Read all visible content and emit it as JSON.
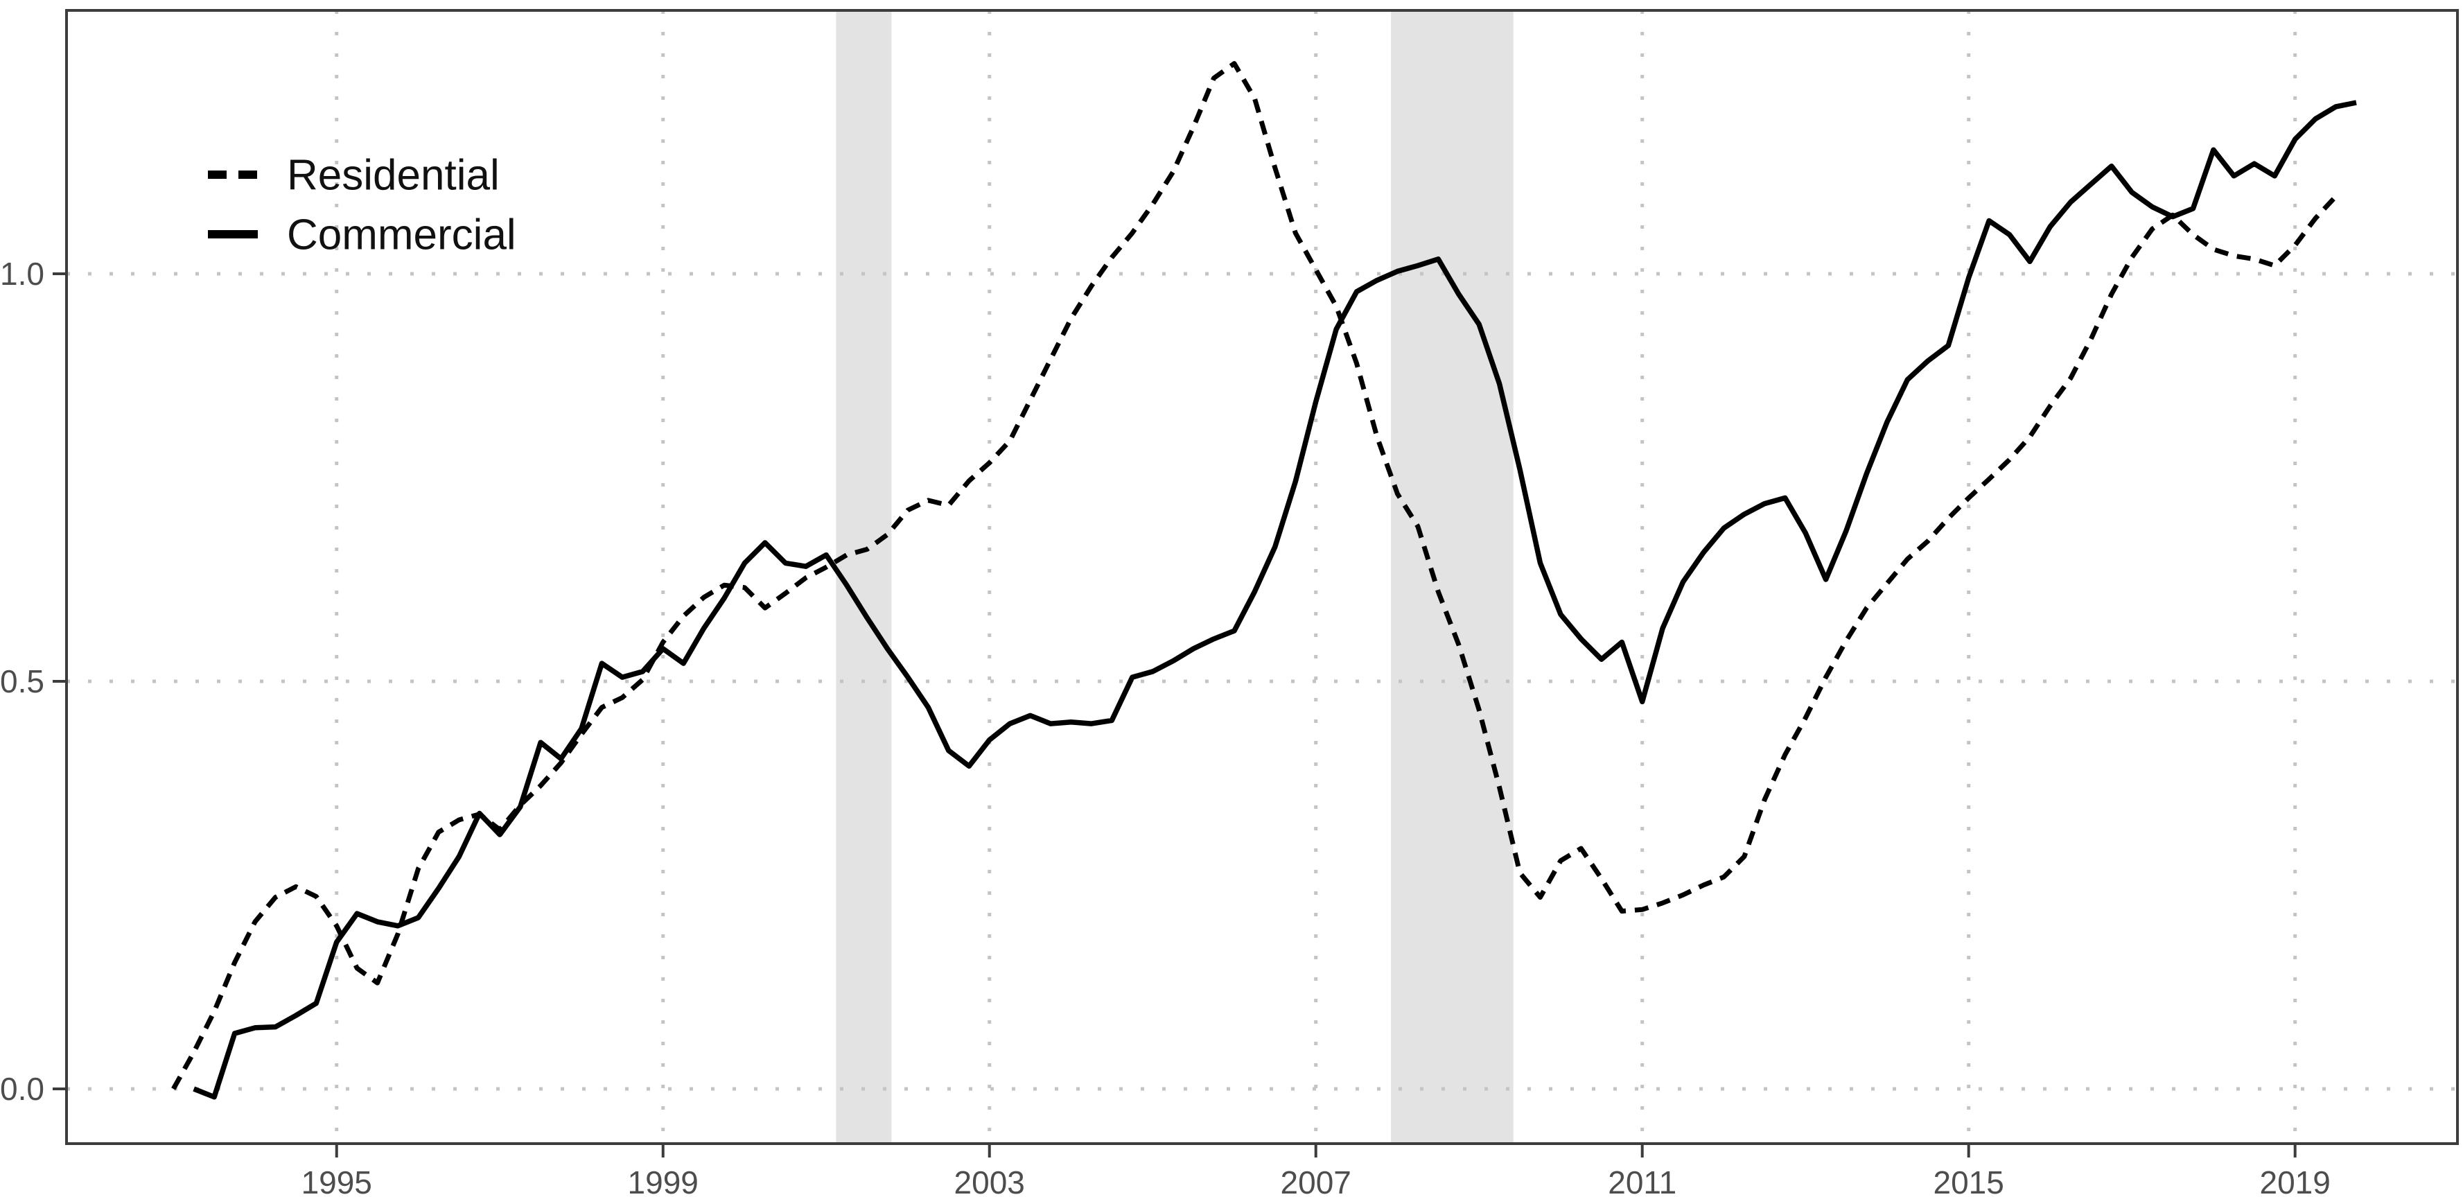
{
  "chart_data": {
    "type": "line",
    "title": "",
    "xlabel": "",
    "ylabel": "",
    "xlim": [
      1991.69,
      2020.99
    ],
    "ylim": [
      -0.0672,
      1.3231
    ],
    "x_ticks": [
      1995,
      1999,
      2003,
      2007,
      2011,
      2015,
      2019
    ],
    "x_tick_labels": [
      "1995",
      "1999",
      "2003",
      "2007",
      "2011",
      "2015",
      "2019"
    ],
    "y_ticks": [
      0.0,
      0.5,
      1.0
    ],
    "y_tick_labels": [
      "0.0",
      "0.5",
      "1.0"
    ],
    "grid": "dotted",
    "legend_position": "inside-top-left",
    "recession_bands": [
      {
        "start": 2001.12,
        "end": 2001.8
      },
      {
        "start": 2007.92,
        "end": 2009.42
      }
    ],
    "series": [
      {
        "name": "Residential",
        "style": "dashed",
        "points": [
          [
            1993.0,
            0.0
          ],
          [
            1993.25,
            0.045
          ],
          [
            1993.5,
            0.095
          ],
          [
            1993.75,
            0.155
          ],
          [
            1994.0,
            0.205
          ],
          [
            1994.25,
            0.235
          ],
          [
            1994.5,
            0.248
          ],
          [
            1994.75,
            0.236
          ],
          [
            1995.0,
            0.2
          ],
          [
            1995.25,
            0.148
          ],
          [
            1995.5,
            0.13
          ],
          [
            1995.75,
            0.19
          ],
          [
            1996.0,
            0.27
          ],
          [
            1996.25,
            0.315
          ],
          [
            1996.5,
            0.33
          ],
          [
            1996.75,
            0.337
          ],
          [
            1997.0,
            0.318
          ],
          [
            1997.25,
            0.348
          ],
          [
            1997.5,
            0.372
          ],
          [
            1997.75,
            0.4
          ],
          [
            1998.0,
            0.435
          ],
          [
            1998.25,
            0.468
          ],
          [
            1998.5,
            0.48
          ],
          [
            1998.75,
            0.502
          ],
          [
            1999.0,
            0.548
          ],
          [
            1999.25,
            0.58
          ],
          [
            1999.5,
            0.603
          ],
          [
            1999.75,
            0.618
          ],
          [
            2000.0,
            0.615
          ],
          [
            2000.25,
            0.59
          ],
          [
            2000.5,
            0.608
          ],
          [
            2000.75,
            0.627
          ],
          [
            2001.0,
            0.64
          ],
          [
            2001.25,
            0.655
          ],
          [
            2001.5,
            0.662
          ],
          [
            2001.75,
            0.68
          ],
          [
            2002.0,
            0.71
          ],
          [
            2002.25,
            0.722
          ],
          [
            2002.5,
            0.716
          ],
          [
            2002.75,
            0.746
          ],
          [
            2003.0,
            0.768
          ],
          [
            2003.25,
            0.795
          ],
          [
            2003.5,
            0.845
          ],
          [
            2003.75,
            0.895
          ],
          [
            2004.0,
            0.945
          ],
          [
            2004.25,
            0.985
          ],
          [
            2004.5,
            1.02
          ],
          [
            2004.75,
            1.05
          ],
          [
            2005.0,
            1.085
          ],
          [
            2005.25,
            1.125
          ],
          [
            2005.5,
            1.18
          ],
          [
            2005.75,
            1.24
          ],
          [
            2006.0,
            1.258
          ],
          [
            2006.25,
            1.215
          ],
          [
            2006.5,
            1.13
          ],
          [
            2006.75,
            1.05
          ],
          [
            2007.0,
            1.005
          ],
          [
            2007.25,
            0.96
          ],
          [
            2007.5,
            0.89
          ],
          [
            2007.75,
            0.8
          ],
          [
            2008.0,
            0.73
          ],
          [
            2008.25,
            0.69
          ],
          [
            2008.5,
            0.61
          ],
          [
            2008.75,
            0.545
          ],
          [
            2009.0,
            0.465
          ],
          [
            2009.25,
            0.37
          ],
          [
            2009.5,
            0.265
          ],
          [
            2009.75,
            0.235
          ],
          [
            2010.0,
            0.28
          ],
          [
            2010.25,
            0.295
          ],
          [
            2010.5,
            0.258
          ],
          [
            2010.75,
            0.218
          ],
          [
            2011.0,
            0.22
          ],
          [
            2011.25,
            0.228
          ],
          [
            2011.5,
            0.238
          ],
          [
            2011.75,
            0.25
          ],
          [
            2012.0,
            0.26
          ],
          [
            2012.25,
            0.285
          ],
          [
            2012.5,
            0.355
          ],
          [
            2012.75,
            0.41
          ],
          [
            2013.0,
            0.455
          ],
          [
            2013.25,
            0.505
          ],
          [
            2013.5,
            0.55
          ],
          [
            2013.75,
            0.59
          ],
          [
            2014.0,
            0.62
          ],
          [
            2014.25,
            0.65
          ],
          [
            2014.5,
            0.672
          ],
          [
            2014.75,
            0.7
          ],
          [
            2015.0,
            0.725
          ],
          [
            2015.25,
            0.748
          ],
          [
            2015.5,
            0.772
          ],
          [
            2015.75,
            0.8
          ],
          [
            2016.0,
            0.838
          ],
          [
            2016.25,
            0.872
          ],
          [
            2016.5,
            0.92
          ],
          [
            2016.75,
            0.975
          ],
          [
            2017.0,
            1.02
          ],
          [
            2017.25,
            1.055
          ],
          [
            2017.5,
            1.072
          ],
          [
            2017.75,
            1.048
          ],
          [
            2018.0,
            1.03
          ],
          [
            2018.25,
            1.022
          ],
          [
            2018.5,
            1.018
          ],
          [
            2018.75,
            1.01
          ],
          [
            2019.0,
            1.035
          ],
          [
            2019.25,
            1.068
          ],
          [
            2019.5,
            1.095
          ]
        ]
      },
      {
        "name": "Commercial",
        "style": "solid",
        "points": [
          [
            1993.25,
            0.0
          ],
          [
            1993.5,
            -0.01
          ],
          [
            1993.75,
            0.068
          ],
          [
            1994.0,
            0.075
          ],
          [
            1994.25,
            0.076
          ],
          [
            1994.5,
            0.09
          ],
          [
            1994.75,
            0.105
          ],
          [
            1995.0,
            0.18
          ],
          [
            1995.25,
            0.215
          ],
          [
            1995.5,
            0.205
          ],
          [
            1995.75,
            0.2
          ],
          [
            1996.0,
            0.21
          ],
          [
            1996.25,
            0.246
          ],
          [
            1996.5,
            0.285
          ],
          [
            1996.75,
            0.338
          ],
          [
            1997.0,
            0.312
          ],
          [
            1997.25,
            0.346
          ],
          [
            1997.5,
            0.425
          ],
          [
            1997.75,
            0.405
          ],
          [
            1998.0,
            0.442
          ],
          [
            1998.25,
            0.522
          ],
          [
            1998.5,
            0.505
          ],
          [
            1998.75,
            0.512
          ],
          [
            1999.0,
            0.54
          ],
          [
            1999.25,
            0.522
          ],
          [
            1999.5,
            0.565
          ],
          [
            1999.75,
            0.602
          ],
          [
            2000.0,
            0.645
          ],
          [
            2000.25,
            0.67
          ],
          [
            2000.5,
            0.645
          ],
          [
            2000.75,
            0.641
          ],
          [
            2001.0,
            0.655
          ],
          [
            2001.25,
            0.618
          ],
          [
            2001.5,
            0.578
          ],
          [
            2001.75,
            0.54
          ],
          [
            2002.0,
            0.505
          ],
          [
            2002.25,
            0.468
          ],
          [
            2002.5,
            0.415
          ],
          [
            2002.75,
            0.396
          ],
          [
            2003.0,
            0.428
          ],
          [
            2003.25,
            0.448
          ],
          [
            2003.5,
            0.458
          ],
          [
            2003.75,
            0.448
          ],
          [
            2004.0,
            0.45
          ],
          [
            2004.25,
            0.448
          ],
          [
            2004.5,
            0.452
          ],
          [
            2004.75,
            0.505
          ],
          [
            2005.0,
            0.512
          ],
          [
            2005.25,
            0.525
          ],
          [
            2005.5,
            0.54
          ],
          [
            2005.75,
            0.552
          ],
          [
            2006.0,
            0.562
          ],
          [
            2006.25,
            0.61
          ],
          [
            2006.5,
            0.665
          ],
          [
            2006.75,
            0.745
          ],
          [
            2007.0,
            0.843
          ],
          [
            2007.25,
            0.932
          ],
          [
            2007.5,
            0.978
          ],
          [
            2007.75,
            0.992
          ],
          [
            2008.0,
            1.003
          ],
          [
            2008.25,
            1.01
          ],
          [
            2008.5,
            1.018
          ],
          [
            2008.75,
            0.975
          ],
          [
            2009.0,
            0.938
          ],
          [
            2009.25,
            0.865
          ],
          [
            2009.5,
            0.76
          ],
          [
            2009.75,
            0.645
          ],
          [
            2010.0,
            0.582
          ],
          [
            2010.25,
            0.552
          ],
          [
            2010.5,
            0.527
          ],
          [
            2010.75,
            0.548
          ],
          [
            2011.0,
            0.475
          ],
          [
            2011.25,
            0.565
          ],
          [
            2011.5,
            0.622
          ],
          [
            2011.75,
            0.658
          ],
          [
            2012.0,
            0.688
          ],
          [
            2012.25,
            0.705
          ],
          [
            2012.5,
            0.718
          ],
          [
            2012.75,
            0.725
          ],
          [
            2013.0,
            0.682
          ],
          [
            2013.25,
            0.625
          ],
          [
            2013.5,
            0.685
          ],
          [
            2013.75,
            0.755
          ],
          [
            2014.0,
            0.818
          ],
          [
            2014.25,
            0.87
          ],
          [
            2014.5,
            0.893
          ],
          [
            2014.75,
            0.912
          ],
          [
            2015.0,
            0.995
          ],
          [
            2015.25,
            1.065
          ],
          [
            2015.5,
            1.048
          ],
          [
            2015.75,
            1.015
          ],
          [
            2016.0,
            1.058
          ],
          [
            2016.25,
            1.088
          ],
          [
            2016.5,
            1.11
          ],
          [
            2016.75,
            1.132
          ],
          [
            2017.0,
            1.1
          ],
          [
            2017.25,
            1.082
          ],
          [
            2017.5,
            1.07
          ],
          [
            2017.75,
            1.08
          ],
          [
            2018.0,
            1.152
          ],
          [
            2018.25,
            1.12
          ],
          [
            2018.5,
            1.135
          ],
          [
            2018.75,
            1.12
          ],
          [
            2019.0,
            1.165
          ],
          [
            2019.25,
            1.19
          ],
          [
            2019.5,
            1.205
          ],
          [
            2019.75,
            1.21
          ]
        ]
      }
    ]
  },
  "legend": {
    "items": [
      {
        "label": "Residential"
      },
      {
        "label": "Commercial"
      }
    ]
  },
  "colors": {
    "line": "#000000",
    "recession_band": "#e3e3e3",
    "grid_dots": "#c4c4c4",
    "axis_text": "#4d4d4d",
    "panel_border": "#3c3c3c",
    "background": "#ffffff"
  }
}
